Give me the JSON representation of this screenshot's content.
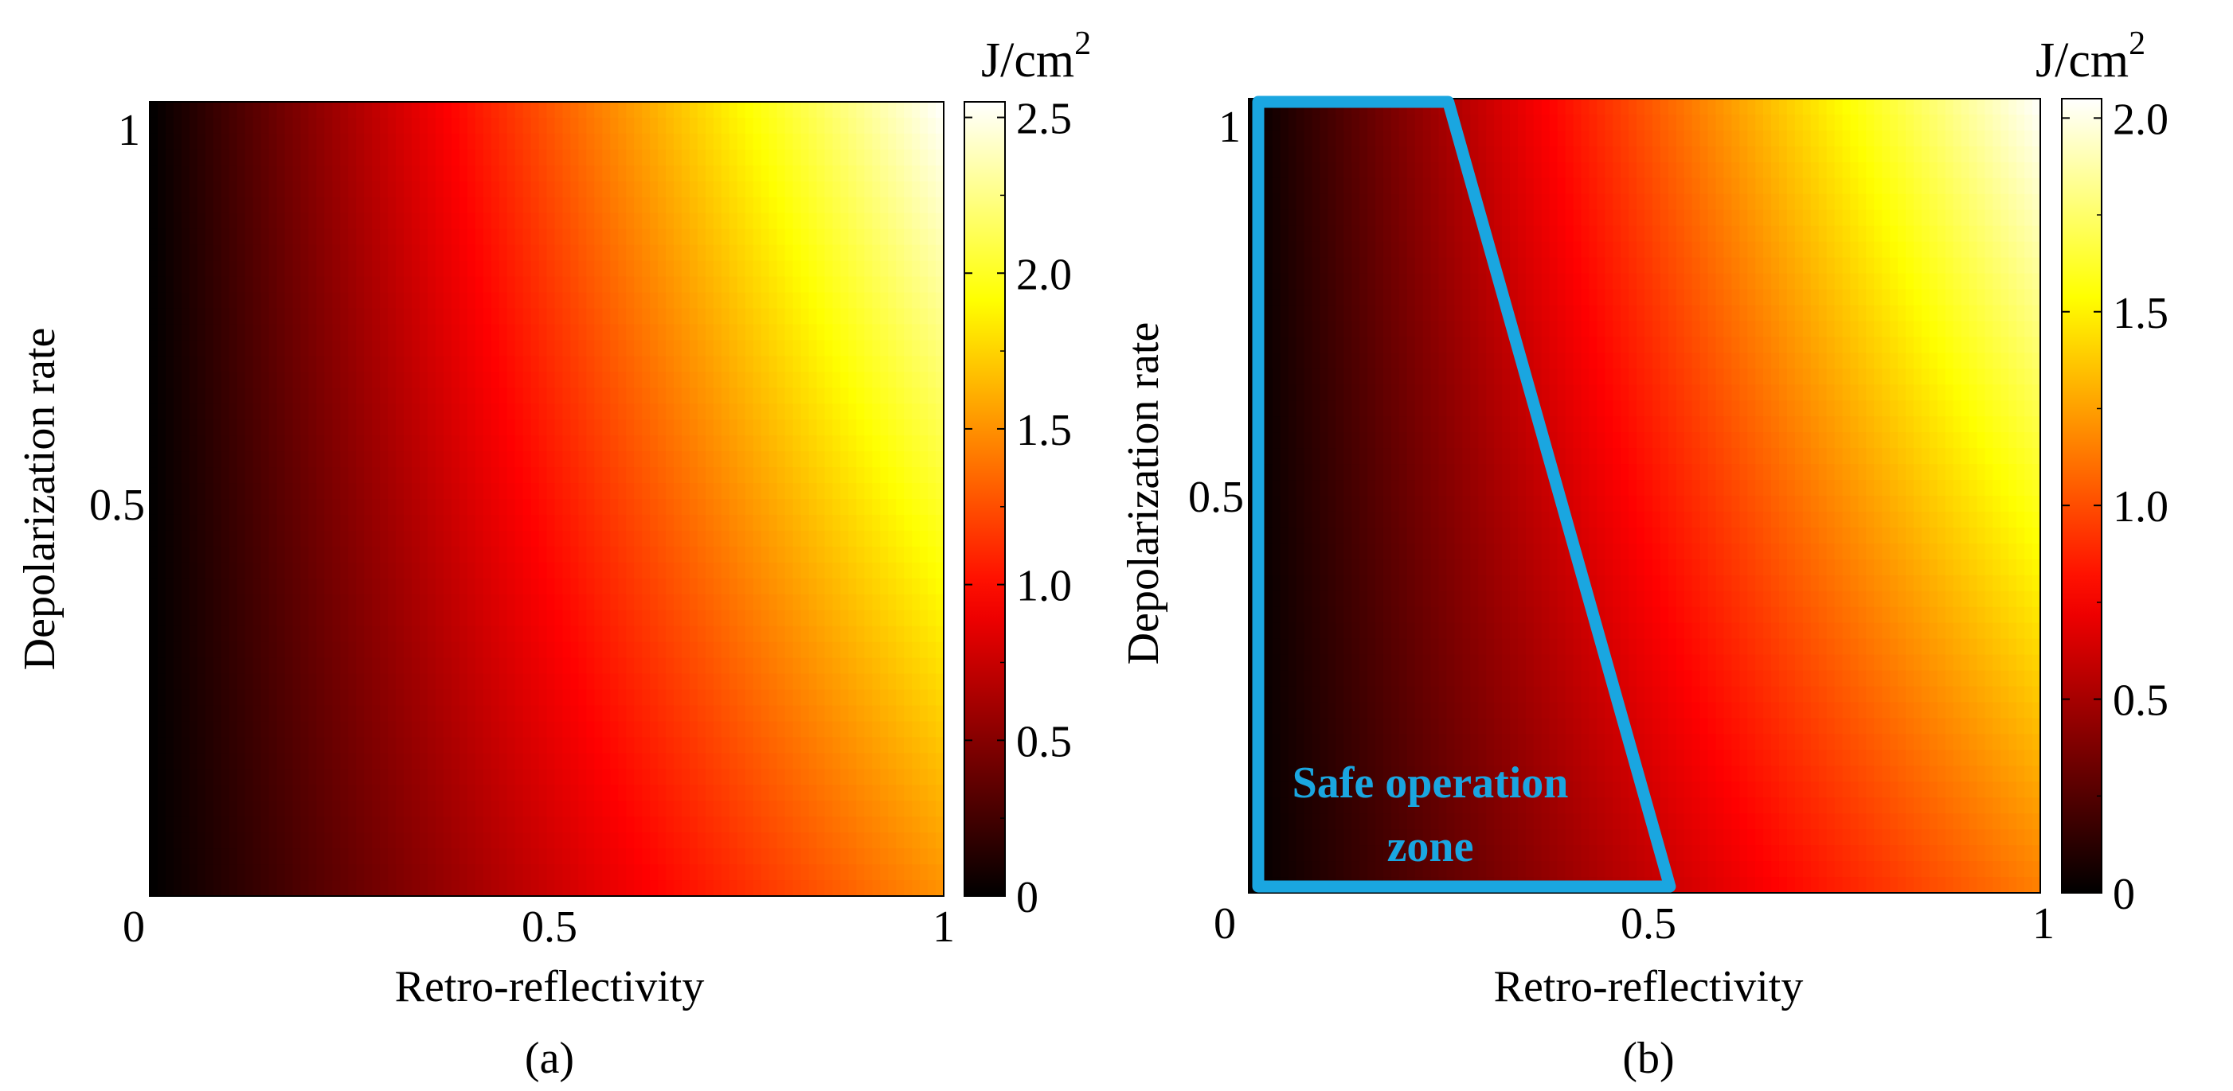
{
  "chart_data": [
    {
      "type": "heatmap",
      "panel": "(a)",
      "xlabel": "Retro-reflectivity",
      "ylabel": "Depolarization rate",
      "xlim": [
        0,
        1
      ],
      "ylim": [
        0,
        1
      ],
      "x_ticks": [
        0,
        0.5,
        1
      ],
      "x_tick_labels": [
        "0",
        "0.5",
        "1"
      ],
      "y_ticks": [
        0.5,
        1
      ],
      "y_tick_labels": [
        "0.5",
        "1"
      ],
      "colorbar": {
        "label": "J/cm",
        "label_superscript": "2",
        "range": [
          0,
          2.55
        ],
        "ticks": [
          0,
          0.5,
          1.0,
          1.5,
          2.0,
          2.5
        ],
        "tick_labels": [
          "0",
          "0.5",
          "1.0",
          "1.5",
          "2.0",
          "2.5"
        ],
        "colormap": "hot"
      },
      "value_model": "E = 1.5 * x * (1 + 0.7 * y)",
      "corner_values": {
        "x0_y0": 0,
        "x1_y0": 1.5,
        "x0_y1": 0,
        "x1_y1": 2.55
      },
      "coefficients": {
        "a": 1.5,
        "b": 0.7
      }
    },
    {
      "type": "heatmap",
      "panel": "(b)",
      "xlabel": "Retro-reflectivity",
      "ylabel": "Depolarization rate",
      "xlim": [
        0,
        1
      ],
      "ylim": [
        0,
        1
      ],
      "x_ticks": [
        0,
        0.5,
        1
      ],
      "x_tick_labels": [
        "0",
        "0.5",
        "1"
      ],
      "y_ticks": [
        0.5,
        1
      ],
      "y_tick_labels": [
        "0.5",
        "1"
      ],
      "colorbar": {
        "label": "J/cm",
        "label_superscript": "2",
        "range": [
          0,
          2.05
        ],
        "ticks": [
          0,
          0.5,
          1.0,
          1.5,
          2.0
        ],
        "tick_labels": [
          "0",
          "0.5",
          "1.0",
          "1.5",
          "2.0"
        ],
        "colormap": "hot"
      },
      "value_model": "E = 1.15 * x * (1 + 0.78 * y)",
      "corner_values": {
        "x0_y0": 0,
        "x1_y0": 1.15,
        "x0_y1": 0,
        "x1_y1": 2.05
      },
      "coefficients": {
        "a": 1.15,
        "b": 0.78
      },
      "annotation": {
        "text_line1": "Safe operation",
        "text_line2": "zone",
        "color": "#1aa6e0",
        "boundary": [
          [
            0,
            0
          ],
          [
            0,
            1
          ],
          [
            0.24,
            1
          ],
          [
            0.52,
            0
          ]
        ]
      }
    }
  ],
  "colors": {
    "zone_outline": "#1aa6e0",
    "axis": "#000000",
    "background": "#ffffff"
  }
}
